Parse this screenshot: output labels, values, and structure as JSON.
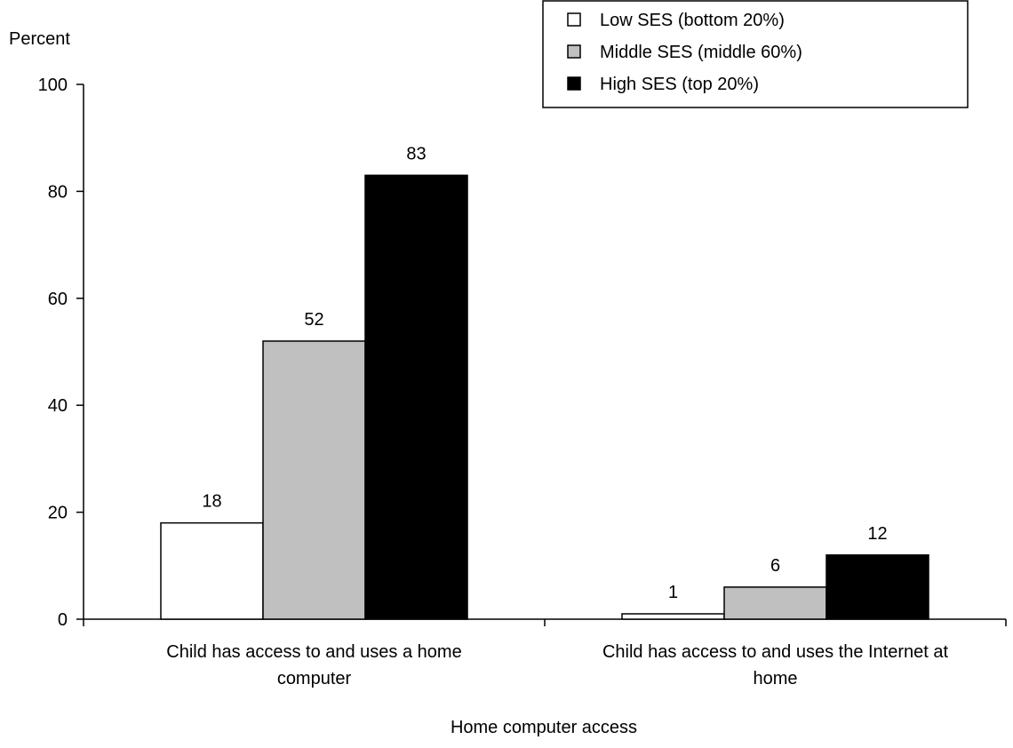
{
  "chart_data": {
    "type": "bar",
    "title": "",
    "ylabel": "Percent",
    "xlabel": "Home computer access",
    "ylim": [
      0,
      100
    ],
    "yticks": [
      0,
      20,
      40,
      60,
      80,
      100
    ],
    "grid": false,
    "legend_position": "top-right",
    "categories": [
      [
        "Child has access to and uses a home",
        "computer"
      ],
      [
        "Child has access to and uses the Internet at",
        "home"
      ]
    ],
    "series": [
      {
        "name": "Low SES (bottom 20%)",
        "color": "#ffffff",
        "values": [
          18,
          1
        ]
      },
      {
        "name": "Middle SES (middle 60%)",
        "color": "#c0c0c0",
        "values": [
          52,
          6
        ]
      },
      {
        "name": "High SES (top 20%)",
        "color": "#000000",
        "values": [
          83,
          12
        ]
      }
    ]
  }
}
